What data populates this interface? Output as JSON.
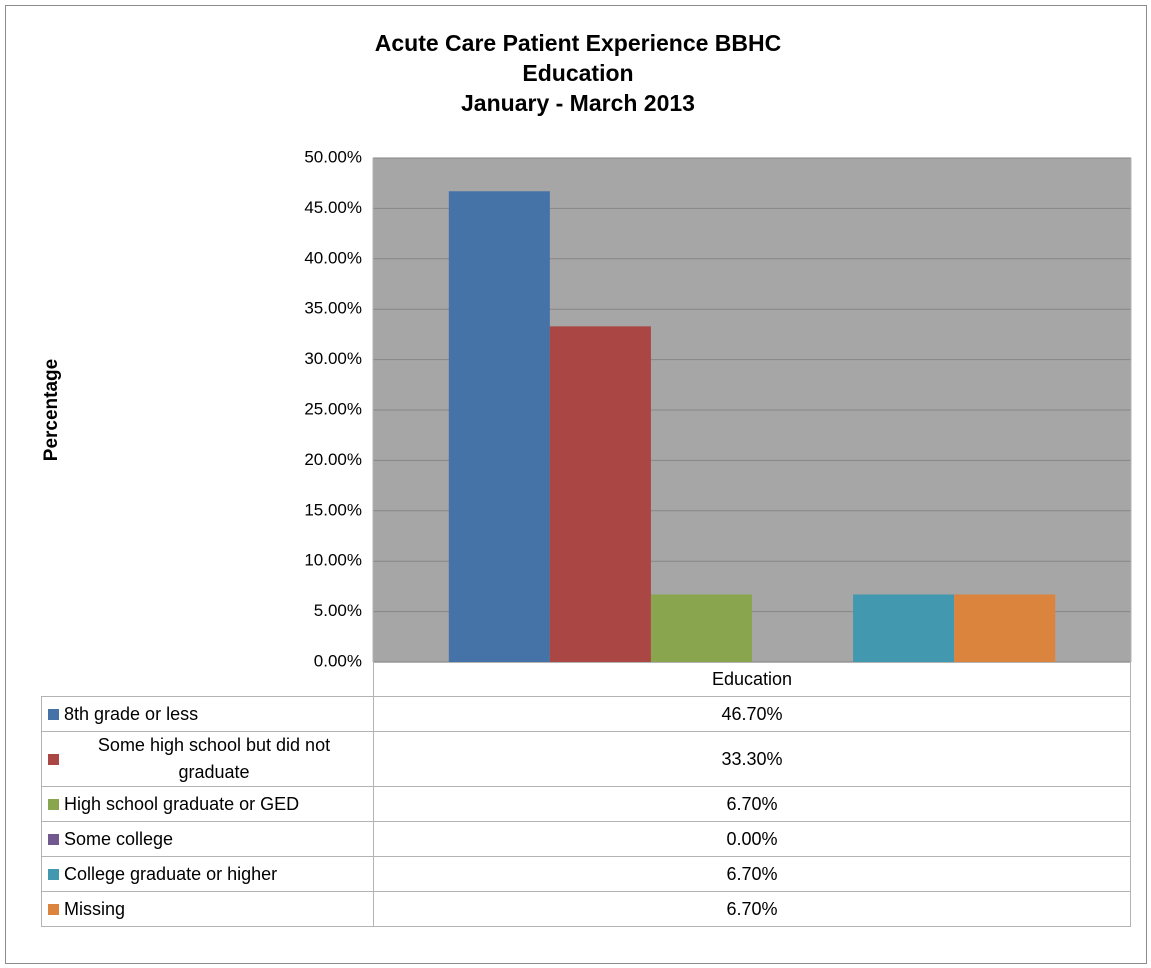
{
  "chart_data": {
    "type": "bar",
    "title": [
      "Acute Care Patient Experience BBHC",
      "Education",
      "January - March 2013"
    ],
    "y_label": "Percentage",
    "categories": [
      "Education"
    ],
    "series": [
      {
        "name": "8th grade or less",
        "color": "#4572a7",
        "values": [
          46.7
        ],
        "value_labels": [
          "46.70%"
        ]
      },
      {
        "name": "Some high school but did not graduate",
        "color": "#aa4643",
        "values": [
          33.3
        ],
        "value_labels": [
          "33.30%"
        ]
      },
      {
        "name": "High school graduate or GED",
        "color": "#89a54e",
        "values": [
          6.7
        ],
        "value_labels": [
          "6.70%"
        ]
      },
      {
        "name": "Some college",
        "color": "#71588f",
        "values": [
          0
        ],
        "value_labels": [
          "0.00%"
        ]
      },
      {
        "name": "College graduate or higher",
        "color": "#4198af",
        "values": [
          6.7
        ],
        "value_labels": [
          "6.70%"
        ]
      },
      {
        "name": "Missing",
        "color": "#db843d",
        "values": [
          6.7
        ],
        "value_labels": [
          "6.70%"
        ]
      }
    ],
    "ylim": [
      0,
      50
    ],
    "yticks": [
      {
        "value": 0,
        "label": "0.00%"
      },
      {
        "value": 5,
        "label": "5.00%"
      },
      {
        "value": 10,
        "label": "10.00%"
      },
      {
        "value": 15,
        "label": "15.00%"
      },
      {
        "value": 20,
        "label": "20.00%"
      },
      {
        "value": 25,
        "label": "25.00%"
      },
      {
        "value": 30,
        "label": "30.00%"
      },
      {
        "value": 35,
        "label": "35.00%"
      },
      {
        "value": 40,
        "label": "40.00%"
      },
      {
        "value": 45,
        "label": "45.00%"
      },
      {
        "value": 50,
        "label": "50.00%"
      }
    ],
    "grid": true,
    "plot_background": "#a6a6a6"
  }
}
